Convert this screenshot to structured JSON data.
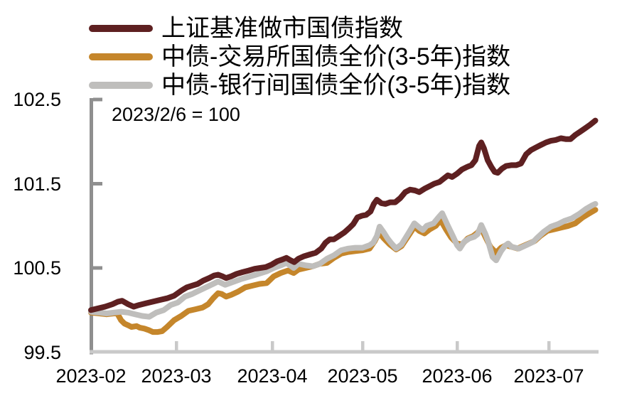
{
  "legend": {
    "items": [
      {
        "label": "上证基准做市国债指数",
        "color": "#5E2021"
      },
      {
        "label": "中债-交易所国债全价(3-5年)指数",
        "color": "#C5862B"
      },
      {
        "label": "中债-银行间国债全价(3-5年)指数",
        "color": "#BFBEBC"
      }
    ]
  },
  "chart_data": {
    "type": "line",
    "annotation": "2023/2/6 = 100",
    "x_unit": "days since 2023-02-06",
    "ylim": [
      99.5,
      102.5
    ],
    "xlim_days": [
      0,
      161
    ],
    "y_ticks": [
      99.5,
      100.5,
      101.5,
      102.5
    ],
    "x_ticks": [
      {
        "label": "2023-02",
        "day": 0
      },
      {
        "label": "2023-03",
        "day": 23
      },
      {
        "label": "2023-04",
        "day": 54
      },
      {
        "label": "2023-05",
        "day": 84
      },
      {
        "label": "2023-06",
        "day": 115
      },
      {
        "label": "2023-07",
        "day": 145
      }
    ],
    "grid": false,
    "legend_position": "top-left",
    "axis_color": "#8F8F8F",
    "baseline_color": "#C9C9C9",
    "series": [
      {
        "name": "上证基准做市国债指数",
        "color": "#5E2021",
        "z": 3,
        "points": [
          [
            0,
            100.0
          ],
          [
            1.9,
            100.02
          ],
          [
            3.8,
            100.04
          ],
          [
            5.8,
            100.07
          ],
          [
            7.3,
            100.1
          ],
          [
            8.4,
            100.11
          ],
          [
            10,
            100.07
          ],
          [
            11.5,
            100.04
          ],
          [
            13,
            100.06
          ],
          [
            14.8,
            100.08
          ],
          [
            16.7,
            100.1
          ],
          [
            18.6,
            100.12
          ],
          [
            20.5,
            100.14
          ],
          [
            22.4,
            100.17
          ],
          [
            24.6,
            100.23
          ],
          [
            26.4,
            100.27
          ],
          [
            28.1,
            100.29
          ],
          [
            29.9,
            100.31
          ],
          [
            31.7,
            100.35
          ],
          [
            33.6,
            100.38
          ],
          [
            35.2,
            100.41
          ],
          [
            36.5,
            100.42
          ],
          [
            37.9,
            100.4
          ],
          [
            39.1,
            100.38
          ],
          [
            40.7,
            100.4
          ],
          [
            42.5,
            100.43
          ],
          [
            44.4,
            100.45
          ],
          [
            46.4,
            100.47
          ],
          [
            48.3,
            100.49
          ],
          [
            50.1,
            100.5
          ],
          [
            51.9,
            100.51
          ],
          [
            53.8,
            100.54
          ],
          [
            55.7,
            100.58
          ],
          [
            57.3,
            100.6
          ],
          [
            58.7,
            100.62
          ],
          [
            60.1,
            100.59
          ],
          [
            61.3,
            100.57
          ],
          [
            62.7,
            100.61
          ],
          [
            64.6,
            100.64
          ],
          [
            66.5,
            100.66
          ],
          [
            68.4,
            100.68
          ],
          [
            70.3,
            100.73
          ],
          [
            71.7,
            100.8
          ],
          [
            73.1,
            100.84
          ],
          [
            74.5,
            100.84
          ],
          [
            76.2,
            100.88
          ],
          [
            77.9,
            100.92
          ],
          [
            79.5,
            100.97
          ],
          [
            80.9,
            101.02
          ],
          [
            82.3,
            101.1
          ],
          [
            83.8,
            101.12
          ],
          [
            85.2,
            101.13
          ],
          [
            86.6,
            101.17
          ],
          [
            87.7,
            101.26
          ],
          [
            88.7,
            101.31
          ],
          [
            90.1,
            101.27
          ],
          [
            91.5,
            101.26
          ],
          [
            93.1,
            101.28
          ],
          [
            94.7,
            101.28
          ],
          [
            96.4,
            101.33
          ],
          [
            98,
            101.4
          ],
          [
            99.6,
            101.43
          ],
          [
            101.2,
            101.42
          ],
          [
            102.6,
            101.4
          ],
          [
            104.3,
            101.44
          ],
          [
            105.9,
            101.47
          ],
          [
            107.5,
            101.5
          ],
          [
            109.2,
            101.52
          ],
          [
            110.6,
            101.56
          ],
          [
            112,
            101.6
          ],
          [
            113.4,
            101.58
          ],
          [
            115,
            101.62
          ],
          [
            116.6,
            101.67
          ],
          [
            118.3,
            101.7
          ],
          [
            119.7,
            101.72
          ],
          [
            121,
            101.78
          ],
          [
            122.2,
            101.95
          ],
          [
            122.9,
            101.99
          ],
          [
            123.8,
            101.92
          ],
          [
            125,
            101.78
          ],
          [
            126.2,
            101.7
          ],
          [
            127.3,
            101.64
          ],
          [
            128.3,
            101.63
          ],
          [
            129.7,
            101.68
          ],
          [
            131,
            101.71
          ],
          [
            132.7,
            101.72
          ],
          [
            134.3,
            101.72
          ],
          [
            135.9,
            101.74
          ],
          [
            137.6,
            101.85
          ],
          [
            139.2,
            101.9
          ],
          [
            140.8,
            101.93
          ],
          [
            142.4,
            101.96
          ],
          [
            144.1,
            101.99
          ],
          [
            145.7,
            102.01
          ],
          [
            147.3,
            102.02
          ],
          [
            149,
            102.04
          ],
          [
            150.6,
            102.03
          ],
          [
            152.2,
            102.03
          ],
          [
            153.8,
            102.08
          ],
          [
            155.5,
            102.12
          ],
          [
            157.1,
            102.16
          ],
          [
            158.7,
            102.2
          ],
          [
            160.4,
            102.25
          ]
        ]
      },
      {
        "name": "中债-交易所国债全价(3-5年)指数",
        "color": "#C5862B",
        "z": 1,
        "points": [
          [
            0,
            99.97
          ],
          [
            2.3,
            99.96
          ],
          [
            4.2,
            99.95
          ],
          [
            6.1,
            99.96
          ],
          [
            7.1,
            99.96
          ],
          [
            8.1,
            99.88
          ],
          [
            9,
            99.84
          ],
          [
            10,
            99.82
          ],
          [
            10.9,
            99.8
          ],
          [
            12.3,
            99.81
          ],
          [
            13.2,
            99.79
          ],
          [
            14.4,
            99.78
          ],
          [
            15.7,
            99.76
          ],
          [
            16.7,
            99.74
          ],
          [
            18,
            99.74
          ],
          [
            19.2,
            99.75
          ],
          [
            20.5,
            99.8
          ],
          [
            22.4,
            99.88
          ],
          [
            24.6,
            99.93
          ],
          [
            26.9,
            99.99
          ],
          [
            29.2,
            100.01
          ],
          [
            31.5,
            100.03
          ],
          [
            33.3,
            100.07
          ],
          [
            34.9,
            100.14
          ],
          [
            36.5,
            100.2
          ],
          [
            37.7,
            100.19
          ],
          [
            39.1,
            100.16
          ],
          [
            40.7,
            100.18
          ],
          [
            43,
            100.22
          ],
          [
            45.3,
            100.27
          ],
          [
            47.6,
            100.29
          ],
          [
            49.9,
            100.31
          ],
          [
            52.2,
            100.32
          ],
          [
            54.5,
            100.4
          ],
          [
            56.8,
            100.44
          ],
          [
            59.2,
            100.47
          ],
          [
            61.1,
            100.44
          ],
          [
            62.7,
            100.48
          ],
          [
            65.1,
            100.5
          ],
          [
            67.5,
            100.52
          ],
          [
            69.8,
            100.55
          ],
          [
            72.2,
            100.56
          ],
          [
            74.5,
            100.62
          ],
          [
            76.9,
            100.67
          ],
          [
            79.3,
            100.69
          ],
          [
            81.6,
            100.7
          ],
          [
            84,
            100.71
          ],
          [
            86.3,
            100.73
          ],
          [
            88,
            100.82
          ],
          [
            89.4,
            100.92
          ],
          [
            91,
            100.85
          ],
          [
            92.9,
            100.78
          ],
          [
            95,
            100.72
          ],
          [
            96.8,
            100.76
          ],
          [
            99.2,
            100.89
          ],
          [
            101,
            100.99
          ],
          [
            102.6,
            100.94
          ],
          [
            104.3,
            100.91
          ],
          [
            106.1,
            100.96
          ],
          [
            108,
            101.0
          ],
          [
            109.6,
            101.07
          ],
          [
            111.5,
            100.95
          ],
          [
            113.1,
            100.86
          ],
          [
            115,
            100.79
          ],
          [
            116.6,
            100.78
          ],
          [
            118.5,
            100.85
          ],
          [
            120.3,
            100.88
          ],
          [
            121.7,
            100.92
          ],
          [
            122.9,
            100.97
          ],
          [
            124.5,
            100.85
          ],
          [
            125.9,
            100.75
          ],
          [
            127.8,
            100.68
          ],
          [
            129.4,
            100.74
          ],
          [
            131,
            100.77
          ],
          [
            132.9,
            100.75
          ],
          [
            134.8,
            100.73
          ],
          [
            136.6,
            100.76
          ],
          [
            138.5,
            100.79
          ],
          [
            140.4,
            100.82
          ],
          [
            142.2,
            100.88
          ],
          [
            144.5,
            100.94
          ],
          [
            146.9,
            100.96
          ],
          [
            149.2,
            100.98
          ],
          [
            151.5,
            101.0
          ],
          [
            153.8,
            101.03
          ],
          [
            156.2,
            101.1
          ],
          [
            158.5,
            101.15
          ],
          [
            160.4,
            101.19
          ]
        ]
      },
      {
        "name": "中债-银行间国债全价(3-5年)指数",
        "color": "#BFBEBC",
        "z": 2,
        "points": [
          [
            0,
            99.98
          ],
          [
            2.3,
            99.97
          ],
          [
            4.2,
            99.96
          ],
          [
            6.1,
            99.97
          ],
          [
            8.1,
            99.98
          ],
          [
            10,
            99.97
          ],
          [
            11.9,
            99.95
          ],
          [
            13.8,
            99.93
          ],
          [
            15.7,
            99.92
          ],
          [
            17.6,
            99.97
          ],
          [
            19.6,
            100.0
          ],
          [
            21.5,
            100.06
          ],
          [
            23.5,
            100.09
          ],
          [
            25.8,
            100.16
          ],
          [
            28.1,
            100.19
          ],
          [
            30.3,
            100.23
          ],
          [
            32.6,
            100.27
          ],
          [
            34.9,
            100.31
          ],
          [
            36.5,
            100.34
          ],
          [
            38.8,
            100.3
          ],
          [
            41.8,
            100.34
          ],
          [
            44.1,
            100.37
          ],
          [
            48.7,
            100.42
          ],
          [
            52.2,
            100.46
          ],
          [
            54.5,
            100.5
          ],
          [
            56.8,
            100.53
          ],
          [
            58.7,
            100.56
          ],
          [
            61.1,
            100.5
          ],
          [
            62.7,
            100.55
          ],
          [
            65.1,
            100.53
          ],
          [
            67.5,
            100.52
          ],
          [
            69.8,
            100.55
          ],
          [
            72.2,
            100.61
          ],
          [
            74.5,
            100.65
          ],
          [
            76.9,
            100.71
          ],
          [
            79.3,
            100.73
          ],
          [
            81.6,
            100.74
          ],
          [
            84,
            100.74
          ],
          [
            86.3,
            100.77
          ],
          [
            87.5,
            100.8
          ],
          [
            88.7,
            100.88
          ],
          [
            89.6,
            100.99
          ],
          [
            91,
            100.92
          ],
          [
            92.2,
            100.85
          ],
          [
            93.3,
            100.8
          ],
          [
            95,
            100.73
          ],
          [
            96.8,
            100.78
          ],
          [
            99.2,
            100.92
          ],
          [
            101,
            101.03
          ],
          [
            102.6,
            100.98
          ],
          [
            103.8,
            100.95
          ],
          [
            105,
            101.0
          ],
          [
            107.3,
            101.03
          ],
          [
            108.9,
            101.1
          ],
          [
            110.1,
            101.15
          ],
          [
            112,
            101.0
          ],
          [
            113.6,
            100.88
          ],
          [
            115,
            100.77
          ],
          [
            115.9,
            100.73
          ],
          [
            117.3,
            100.81
          ],
          [
            119,
            100.85
          ],
          [
            120.6,
            100.87
          ],
          [
            121.7,
            100.9
          ],
          [
            122.9,
            101.01
          ],
          [
            124.3,
            100.9
          ],
          [
            125.2,
            100.81
          ],
          [
            126.6,
            100.63
          ],
          [
            127.8,
            100.59
          ],
          [
            129.4,
            100.7
          ],
          [
            130.6,
            100.76
          ],
          [
            131.7,
            100.79
          ],
          [
            132.9,
            100.75
          ],
          [
            135.2,
            100.73
          ],
          [
            137.6,
            100.77
          ],
          [
            139.9,
            100.81
          ],
          [
            141,
            100.85
          ],
          [
            143.4,
            100.93
          ],
          [
            145.7,
            100.99
          ],
          [
            148,
            101.02
          ],
          [
            150.3,
            101.06
          ],
          [
            152.7,
            101.09
          ],
          [
            155,
            101.14
          ],
          [
            157.3,
            101.2
          ],
          [
            159.2,
            101.24
          ],
          [
            160.4,
            101.26
          ]
        ]
      }
    ]
  }
}
